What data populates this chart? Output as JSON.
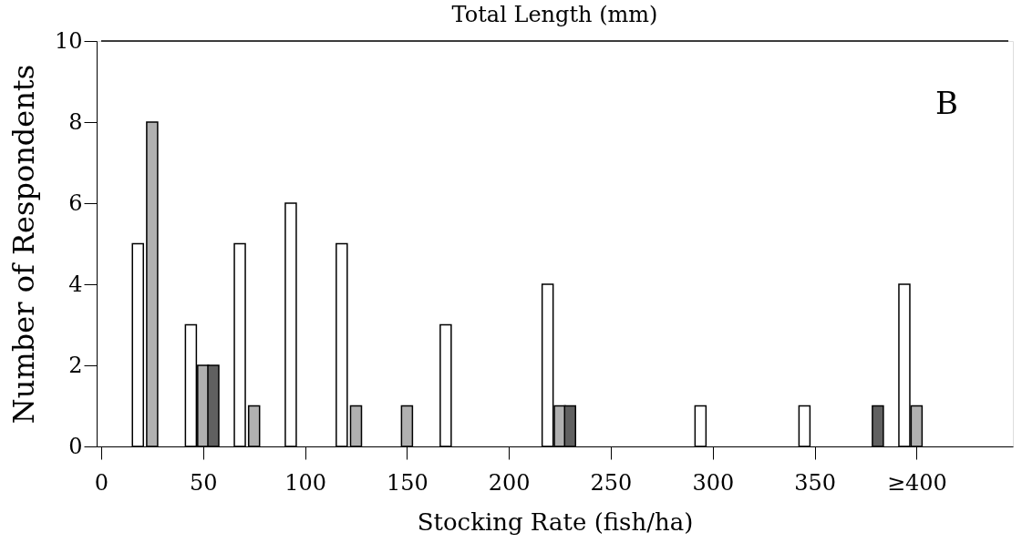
{
  "chart_data": {
    "type": "bar",
    "title": "Total Length (mm)",
    "xlabel": "Stocking Rate (fish/ha)",
    "ylabel": "Number of Respondents",
    "series": [
      {
        "color": "#ffffff",
        "x": [
          18,
          44,
          68,
          93,
          118,
          169,
          219,
          294,
          345,
          394
        ],
        "values": [
          5,
          3,
          5,
          6,
          5,
          3,
          4,
          1,
          1,
          4
        ]
      },
      {
        "color": "#b0b0b0",
        "x": [
          25,
          50,
          75,
          125,
          150,
          225,
          400
        ],
        "values": [
          8,
          2,
          1,
          1,
          1,
          1,
          1
        ]
      },
      {
        "color": "#606060",
        "x": [
          55,
          230,
          381
        ],
        "values": [
          2,
          1,
          1
        ]
      }
    ],
    "xlim": [
      0,
      445
    ],
    "xticks": [
      0,
      50,
      100,
      150,
      200,
      250,
      300,
      350,
      {
        "value": 400,
        "label": "≥400"
      }
    ],
    "ylim": [
      0,
      10
    ],
    "yticks": [
      0,
      2,
      4,
      6,
      8,
      10
    ],
    "grid": false,
    "legend": false,
    "annotations": [
      "B"
    ]
  }
}
